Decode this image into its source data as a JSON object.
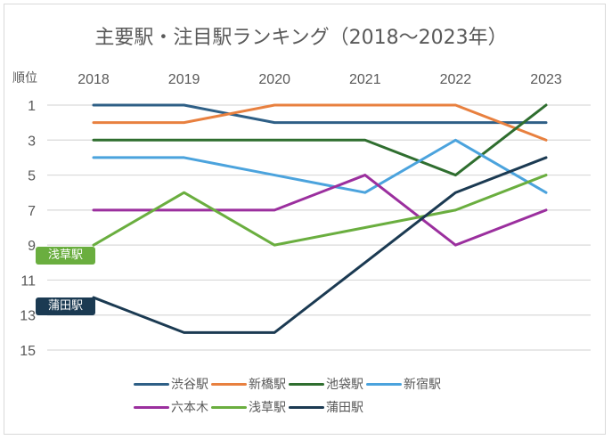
{
  "chart_data": {
    "type": "line",
    "title": "主要駅・注目駅ランキング（2018～2023年）",
    "xlabel": "",
    "ylabel": "順位",
    "x": [
      "2018",
      "2019",
      "2020",
      "2021",
      "2022",
      "2023"
    ],
    "ylim": [
      1,
      15
    ],
    "y_inverted": true,
    "y_ticks": [
      "1",
      "3",
      "5",
      "7",
      "9",
      "11",
      "13",
      "15"
    ],
    "x_axis_position": "top",
    "grid": true,
    "legend_position": "bottom",
    "series": [
      {
        "name": "渋谷駅",
        "color": "#2e5f86",
        "values": [
          1,
          1,
          2,
          2,
          2,
          2
        ]
      },
      {
        "name": "新橋駅",
        "color": "#e8803f",
        "values": [
          2,
          2,
          1,
          1,
          1,
          3
        ]
      },
      {
        "name": "池袋駅",
        "color": "#2f6e2f",
        "values": [
          3,
          3,
          3,
          3,
          5,
          1
        ]
      },
      {
        "name": "新宿駅",
        "color": "#4ba3dd",
        "values": [
          4,
          4,
          5,
          6,
          3,
          6
        ]
      },
      {
        "name": "六本木",
        "color": "#9b2f9e",
        "values": [
          7,
          7,
          7,
          5,
          9,
          7
        ]
      },
      {
        "name": "浅草駅",
        "color": "#6aae3f",
        "values": [
          9,
          6,
          9,
          8,
          7,
          5
        ]
      },
      {
        "name": "蒲田駅",
        "color": "#1b3a52",
        "values": [
          12,
          14,
          14,
          10,
          6,
          4
        ]
      }
    ],
    "annotations": [
      {
        "text": "浅草駅",
        "series": "浅草駅",
        "color": "#6aae3f"
      },
      {
        "text": "蒲田駅",
        "series": "蒲田駅",
        "color": "#1b3a52"
      }
    ]
  }
}
